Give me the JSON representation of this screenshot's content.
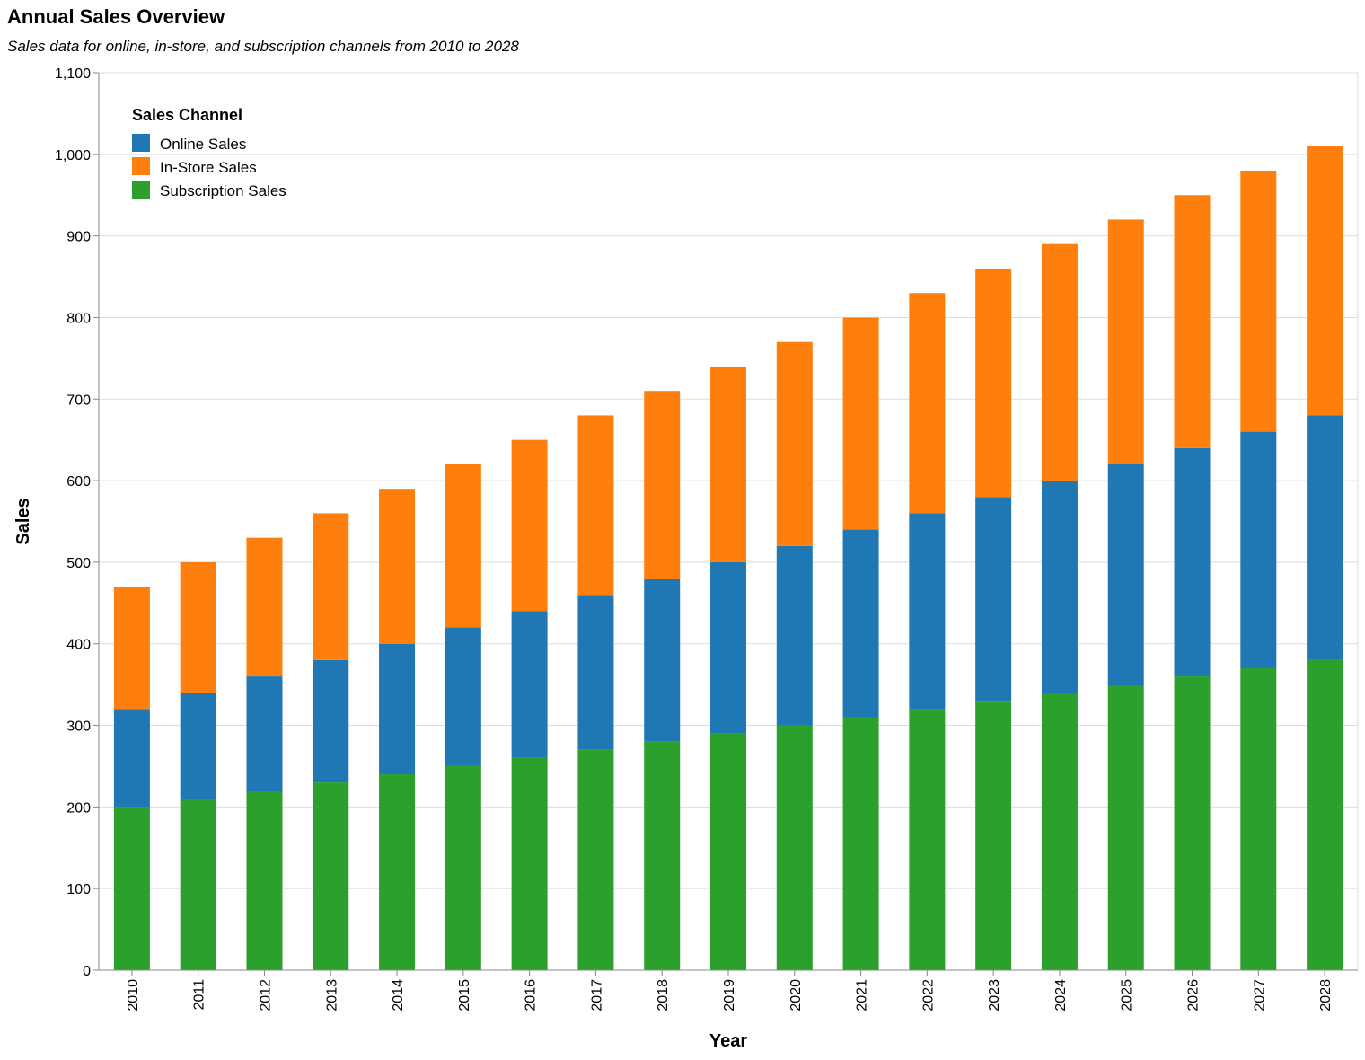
{
  "chart_data": {
    "type": "bar",
    "stacked": true,
    "title": "Annual Sales Overview",
    "subtitle": "Sales data for online, in-store, and subscription channels from 2010 to 2028",
    "xlabel": "Year",
    "ylabel": "Sales",
    "ylim": [
      0,
      1100
    ],
    "yticks": [
      0,
      100,
      200,
      300,
      400,
      500,
      600,
      700,
      800,
      900,
      1000,
      1100
    ],
    "ytick_labels": [
      "0",
      "100",
      "200",
      "300",
      "400",
      "500",
      "600",
      "700",
      "800",
      "900",
      "1,000",
      "1,100"
    ],
    "grid": true,
    "legend": {
      "title": "Sales Channel",
      "position": "top-left"
    },
    "categories": [
      "2010",
      "2011",
      "2012",
      "2013",
      "2014",
      "2015",
      "2016",
      "2017",
      "2018",
      "2019",
      "2020",
      "2021",
      "2022",
      "2023",
      "2024",
      "2025",
      "2026",
      "2027",
      "2028"
    ],
    "series": [
      {
        "name": "Subscription Sales",
        "color": "#2ca02c",
        "values": [
          200,
          210,
          220,
          230,
          240,
          250,
          260,
          270,
          280,
          290,
          300,
          310,
          320,
          330,
          340,
          350,
          360,
          370,
          380
        ]
      },
      {
        "name": "Online Sales",
        "color": "#1f77b4",
        "values": [
          120,
          130,
          140,
          150,
          160,
          170,
          180,
          190,
          200,
          210,
          220,
          230,
          240,
          250,
          260,
          270,
          280,
          290,
          300
        ]
      },
      {
        "name": "In-Store Sales",
        "color": "#ff7f0e",
        "values": [
          150,
          160,
          170,
          180,
          190,
          200,
          210,
          220,
          230,
          240,
          250,
          260,
          270,
          280,
          290,
          300,
          310,
          320,
          330
        ]
      }
    ],
    "legend_order": [
      "Online Sales",
      "In-Store Sales",
      "Subscription Sales"
    ]
  }
}
